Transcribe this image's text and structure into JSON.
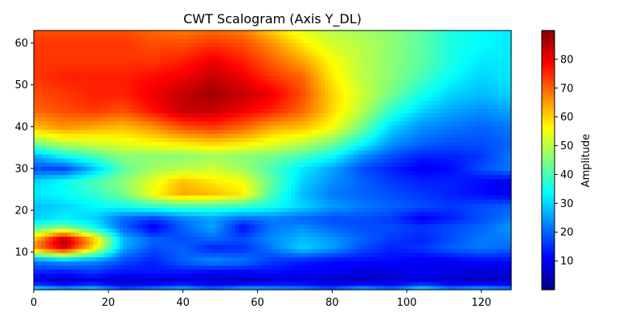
{
  "chart_data": {
    "type": "heatmap",
    "title": "CWT Scalogram (Axis Y_DL)",
    "xlabel": "",
    "ylabel": "",
    "xlim": [
      0,
      128
    ],
    "ylim": [
      1,
      63
    ],
    "x_ticks": [
      0,
      20,
      40,
      60,
      80,
      100,
      120
    ],
    "y_ticks": [
      10,
      20,
      30,
      40,
      50,
      60
    ],
    "grid": false,
    "colormap": "jet",
    "colorbar": {
      "label": "Amplitude",
      "range": [
        0,
        90
      ],
      "ticks": [
        10,
        20,
        30,
        40,
        50,
        60,
        70,
        80
      ]
    },
    "n_x": 128,
    "n_scales": 63,
    "amplitude_estimates": {
      "scale_axis": [
        1,
        3,
        5,
        8,
        11,
        13,
        16,
        18,
        21,
        24,
        27,
        30,
        33,
        36,
        40,
        44,
        48,
        52,
        56,
        60,
        63
      ],
      "x_axis": [
        0,
        8,
        16,
        24,
        32,
        40,
        48,
        56,
        64,
        72,
        80,
        88,
        96,
        104,
        112,
        120,
        128
      ],
      "rows": [
        [
          35,
          28,
          32,
          20,
          25,
          30,
          22,
          30,
          28,
          25,
          20,
          30,
          22,
          35,
          25,
          30,
          25
        ],
        [
          8,
          5,
          8,
          5,
          6,
          7,
          6,
          5,
          7,
          8,
          6,
          5,
          7,
          8,
          6,
          5,
          6
        ],
        [
          14,
          12,
          15,
          12,
          13,
          12,
          10,
          10,
          12,
          10,
          10,
          8,
          8,
          10,
          9,
          7,
          8
        ],
        [
          22,
          25,
          24,
          18,
          14,
          20,
          24,
          22,
          16,
          14,
          12,
          12,
          12,
          10,
          10,
          12,
          12
        ],
        [
          66,
          82,
          58,
          26,
          18,
          20,
          14,
          15,
          22,
          30,
          25,
          18,
          14,
          16,
          20,
          22,
          20
        ],
        [
          62,
          88,
          63,
          28,
          20,
          18,
          20,
          18,
          24,
          28,
          25,
          20,
          16,
          14,
          18,
          22,
          22
        ],
        [
          40,
          45,
          35,
          20,
          10,
          20,
          26,
          12,
          22,
          24,
          20,
          18,
          18,
          16,
          18,
          20,
          25
        ],
        [
          30,
          33,
          30,
          20,
          16,
          22,
          25,
          20,
          22,
          20,
          18,
          18,
          16,
          10,
          14,
          18,
          22
        ],
        [
          28,
          30,
          33,
          35,
          38,
          40,
          40,
          38,
          35,
          30,
          25,
          22,
          20,
          18,
          16,
          18,
          20
        ],
        [
          32,
          34,
          38,
          44,
          56,
          64,
          62,
          58,
          40,
          28,
          22,
          20,
          18,
          16,
          14,
          12,
          10
        ],
        [
          30,
          34,
          40,
          46,
          54,
          62,
          58,
          55,
          42,
          30,
          24,
          20,
          16,
          14,
          14,
          12,
          10
        ],
        [
          18,
          17,
          28,
          42,
          48,
          50,
          52,
          48,
          40,
          32,
          26,
          18,
          14,
          10,
          12,
          18,
          22
        ],
        [
          26,
          34,
          40,
          46,
          46,
          46,
          48,
          46,
          44,
          40,
          34,
          24,
          18,
          14,
          14,
          16,
          22
        ],
        [
          44,
          50,
          52,
          54,
          56,
          58,
          60,
          58,
          54,
          50,
          44,
          34,
          24,
          20,
          18,
          18,
          20
        ],
        [
          62,
          66,
          64,
          62,
          66,
          72,
          74,
          70,
          64,
          62,
          56,
          44,
          30,
          24,
          22,
          20,
          22
        ],
        [
          70,
          72,
          74,
          72,
          78,
          84,
          84,
          80,
          76,
          70,
          60,
          50,
          38,
          30,
          26,
          24,
          26
        ],
        [
          72,
          74,
          76,
          76,
          80,
          84,
          87,
          84,
          80,
          72,
          60,
          52,
          44,
          36,
          30,
          28,
          30
        ],
        [
          74,
          76,
          76,
          76,
          78,
          80,
          84,
          80,
          74,
          70,
          58,
          50,
          46,
          40,
          34,
          30,
          32
        ],
        [
          74,
          74,
          74,
          74,
          74,
          76,
          80,
          76,
          70,
          64,
          56,
          50,
          46,
          42,
          36,
          32,
          32
        ],
        [
          74,
          74,
          74,
          74,
          72,
          72,
          74,
          72,
          66,
          58,
          52,
          50,
          46,
          42,
          36,
          34,
          32
        ],
        [
          72,
          72,
          72,
          72,
          70,
          68,
          70,
          68,
          60,
          54,
          50,
          48,
          46,
          42,
          36,
          34,
          32
        ]
      ]
    }
  }
}
